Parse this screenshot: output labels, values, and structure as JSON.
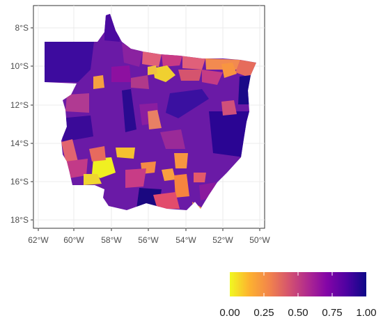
{
  "map": {
    "y_tick_labels": [
      "8°S",
      "10°S",
      "12°S",
      "14°S",
      "16°S",
      "18°S"
    ],
    "x_tick_labels": [
      "62°W",
      "60°W",
      "58°W",
      "56°W",
      "54°W",
      "52°W",
      "50°W"
    ],
    "lat_range": [
      -18.2,
      -7.4
    ],
    "lon_range": [
      -62.2,
      -49.8
    ],
    "grid": true,
    "region_fill_default": "#6a1aa6"
  },
  "legend": {
    "colors": [
      "#f0f921",
      "#fdb32f",
      "#f2844b",
      "#d5546e",
      "#b02a8f",
      "#8405a7",
      "#4c02a1",
      "#0d0887"
    ],
    "tick_labels": [
      "0.00",
      "0.25",
      "0.50",
      "0.75",
      "1.00"
    ],
    "ticks": [
      0,
      0.25,
      0.5,
      0.75,
      1.0
    ],
    "placement": "bottom"
  },
  "colors": {
    "panel_border": "#333333",
    "grid": "#ebebeb",
    "yellow": "#f0f921",
    "orange": "#f89540",
    "pink": "#e66c5c",
    "magenta": "#b73779",
    "purple": "#7e03a8",
    "dark": "#2a0593"
  }
}
